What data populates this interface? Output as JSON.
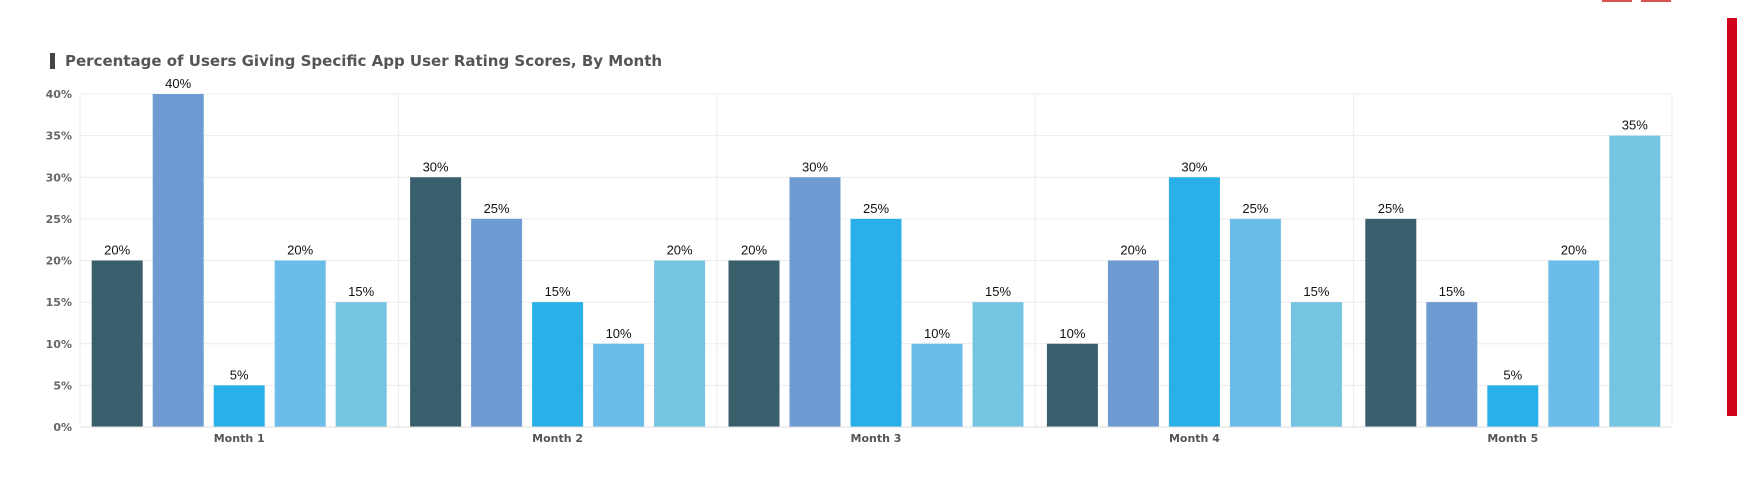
{
  "chart_data": {
    "type": "bar",
    "title": "Percentage of Users Giving Specific App User Rating Scores, By Month",
    "categories": [
      "Month 1",
      "Month 2",
      "Month 3",
      "Month 4",
      "Month 5"
    ],
    "series": [
      {
        "color": "#3a5f6c",
        "values": [
          20,
          30,
          20,
          10,
          25
        ]
      },
      {
        "color": "#6e9bd1",
        "values": [
          40,
          25,
          30,
          20,
          15
        ]
      },
      {
        "color": "#2ab0e8",
        "values": [
          5,
          15,
          25,
          30,
          5
        ]
      },
      {
        "color": "#6bbde9",
        "values": [
          20,
          10,
          10,
          25,
          20
        ]
      },
      {
        "color": "#74c4e2",
        "values": [
          15,
          20,
          15,
          15,
          35
        ]
      }
    ],
    "ylim": [
      0,
      40
    ],
    "y_ticks": [
      "0%",
      "5%",
      "10%",
      "15%",
      "20%",
      "25%",
      "30%",
      "35%",
      "40%"
    ],
    "value_suffix": "%",
    "grid": true,
    "legend": "none"
  }
}
